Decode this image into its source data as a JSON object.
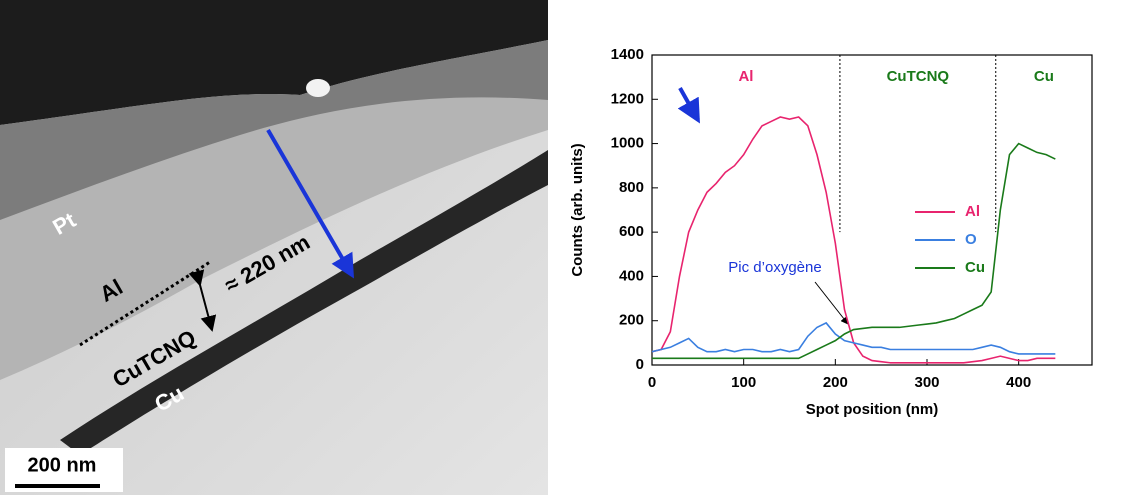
{
  "image_labels": {
    "pt": "Pt",
    "al": "Al",
    "cutcnq": "CuTCNQ",
    "cu": "Cu",
    "thickness": "≈ 220 nm",
    "scale": "200 nm"
  },
  "chart_data": {
    "type": "line",
    "x_label": "Spot position (nm)",
    "y_label": "Counts (arb. units)",
    "xlim": [
      0,
      480
    ],
    "xticks": [
      0,
      100,
      200,
      300,
      400
    ],
    "ylim": [
      0,
      1400
    ],
    "yticks": [
      0,
      200,
      400,
      600,
      800,
      1000,
      1200,
      1400
    ],
    "legend": "right",
    "regions": [
      "Al",
      "CuTCNQ",
      "Cu"
    ],
    "dividers": [
      205,
      375
    ],
    "annotation": "Pic d’oxygène",
    "x": [
      0,
      10,
      20,
      30,
      40,
      50,
      60,
      70,
      80,
      90,
      100,
      110,
      120,
      130,
      140,
      150,
      160,
      170,
      180,
      190,
      200,
      210,
      220,
      230,
      240,
      250,
      260,
      270,
      280,
      290,
      300,
      310,
      320,
      330,
      340,
      350,
      360,
      370,
      380,
      390,
      400,
      410,
      420,
      430,
      440
    ],
    "series": [
      {
        "name": "Al",
        "color": "#e8246e",
        "values": [
          60,
          70,
          150,
          400,
          600,
          700,
          780,
          820,
          870,
          900,
          950,
          1020,
          1080,
          1100,
          1120,
          1110,
          1120,
          1080,
          950,
          780,
          550,
          250,
          100,
          40,
          20,
          15,
          10,
          10,
          10,
          10,
          10,
          10,
          10,
          10,
          10,
          15,
          20,
          30,
          40,
          30,
          20,
          20,
          30,
          30,
          30
        ]
      },
      {
        "name": "O",
        "color": "#3a7fe0",
        "values": [
          60,
          70,
          80,
          100,
          120,
          80,
          60,
          60,
          70,
          60,
          70,
          70,
          60,
          60,
          70,
          60,
          70,
          130,
          170,
          190,
          140,
          110,
          100,
          90,
          80,
          80,
          70,
          70,
          70,
          70,
          70,
          70,
          70,
          70,
          70,
          70,
          80,
          90,
          80,
          60,
          50,
          50,
          50,
          50,
          50
        ]
      },
      {
        "name": "Cu",
        "color": "#1a7a1a",
        "values": [
          30,
          30,
          30,
          30,
          30,
          30,
          30,
          30,
          30,
          30,
          30,
          30,
          30,
          30,
          30,
          30,
          30,
          50,
          70,
          90,
          110,
          140,
          160,
          165,
          170,
          170,
          170,
          170,
          175,
          180,
          185,
          190,
          200,
          210,
          230,
          250,
          270,
          330,
          700,
          950,
          1000,
          980,
          960,
          950,
          930
        ]
      }
    ]
  }
}
